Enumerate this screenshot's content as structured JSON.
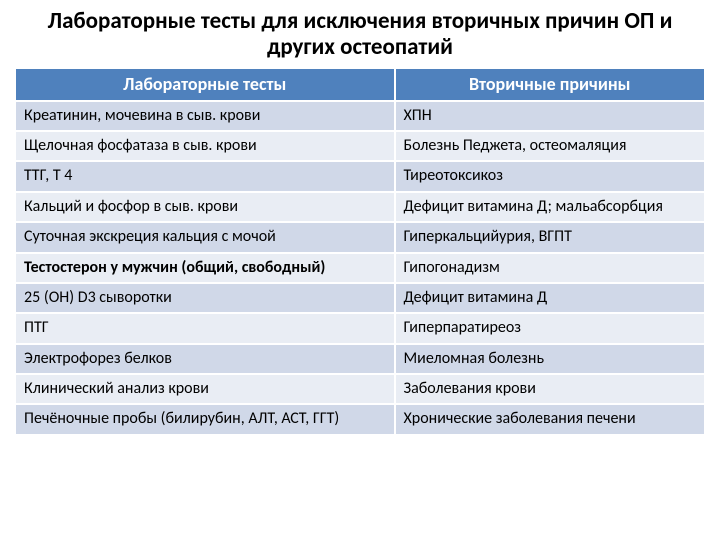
{
  "title": "Лабораторные тесты для исключения вторичных причин ОП и других остеопатий",
  "title_fontsize": 23,
  "table": {
    "header_bg": "#4f81bd",
    "header_fg": "#ffffff",
    "row_bg_a": "#d0d8e8",
    "row_bg_b": "#e9edf4",
    "cell_fontsize": 16,
    "header_fontsize": 18,
    "columns": [
      "Лабораторные тесты",
      "Вторичные причины"
    ],
    "rows": [
      {
        "cells": [
          "Креатинин, мочевина в сыв. крови",
          "ХПН"
        ],
        "bold_left": false
      },
      {
        "cells": [
          "Щелочная фосфатаза в сыв. крови",
          "Болезнь Педжета, остеомаляция"
        ],
        "bold_left": false
      },
      {
        "cells": [
          "ТТГ, Т 4",
          "Тиреотоксикоз"
        ],
        "bold_left": false
      },
      {
        "cells": [
          "Кальций и фосфор в сыв. крови",
          "Дефицит витамина Д; мальабсорбция"
        ],
        "bold_left": false
      },
      {
        "cells": [
          "Суточная экскреция кальция с мочой",
          "Гиперкальцийурия, ВГПТ"
        ],
        "bold_left": false
      },
      {
        "cells": [
          "Тестостерон у мужчин (общий, свободный)",
          "Гипогонадизм"
        ],
        "bold_left": true
      },
      {
        "cells": [
          "25 (ОН) D3 сыворотки",
          "Дефицит витамина Д"
        ],
        "bold_left": false
      },
      {
        "cells": [
          "ПТГ",
          "Гиперпаратиреоз"
        ],
        "bold_left": false
      },
      {
        "cells": [
          "Электрофорез белков",
          "Миеломная болезнь"
        ],
        "bold_left": false
      },
      {
        "cells": [
          "Клинический анализ крови",
          "Заболевания крови"
        ],
        "bold_left": false
      },
      {
        "cells": [
          "Печёночные пробы (билирубин, АЛТ, АСТ, ГГТ)",
          "Хронические заболевания печени"
        ],
        "bold_left": false
      }
    ]
  }
}
